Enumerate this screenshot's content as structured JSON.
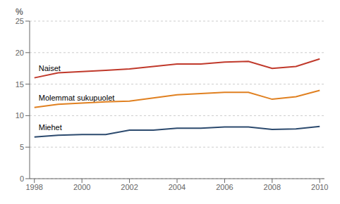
{
  "chart_data": {
    "type": "line",
    "y_label": "%",
    "x": [
      1998,
      1999,
      2000,
      2001,
      2002,
      2003,
      2004,
      2005,
      2006,
      2007,
      2008,
      2009,
      2010
    ],
    "series": [
      {
        "name": "Naiset",
        "color": "#c0392b",
        "values": [
          16.0,
          16.8,
          17.0,
          17.2,
          17.4,
          17.8,
          18.2,
          18.2,
          18.5,
          18.6,
          17.5,
          17.8,
          19.0
        ]
      },
      {
        "name": "Molemmat sukupuolet",
        "color": "#e08020",
        "values": [
          11.3,
          11.8,
          12.0,
          12.2,
          12.3,
          12.8,
          13.3,
          13.5,
          13.7,
          13.7,
          12.6,
          13.0,
          14.0
        ]
      },
      {
        "name": "Miehet",
        "color": "#2c4a6e",
        "values": [
          6.6,
          6.9,
          7.0,
          7.0,
          7.7,
          7.7,
          8.0,
          8.0,
          8.2,
          8.2,
          7.8,
          7.9,
          8.3
        ]
      }
    ],
    "xlim": [
      1997.8,
      2010.2
    ],
    "xticks": [
      1998,
      2000,
      2002,
      2004,
      2006,
      2008,
      2010
    ],
    "ylim": [
      0,
      25
    ],
    "yticks": [
      0,
      5,
      10,
      15,
      20,
      25
    ],
    "grid": true
  }
}
